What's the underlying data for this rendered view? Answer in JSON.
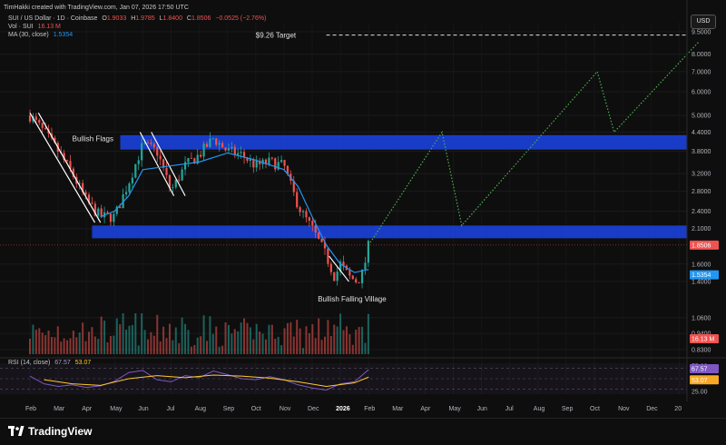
{
  "header": {
    "created_by": "TimHakki created with TradingView.com, Jan 07, 2026 17:50 UTC"
  },
  "legend": {
    "symbol": "SUI / US Dollar · 1D · Coinbase",
    "ohlc": {
      "O": "1.9033",
      "H": "1.9785",
      "L": "1.8400",
      "C": "1.8506",
      "change": "−0.0525 (−2.76%)"
    },
    "vol_label": "Vol · SUI",
    "vol_value": "16.13 M",
    "ma_label": "MA (30, close)",
    "ma_value": "1.5354",
    "rsi_label": "RSI (14, close)",
    "rsi_value": "67.57",
    "rsi_ma_value": "53.07"
  },
  "currency": "USD",
  "brand": "TradingView",
  "colors": {
    "up": "#26a69a",
    "down": "#ef5350",
    "zone": "#1a3fd1",
    "ma": "#2196f3",
    "projection": "#4caf50",
    "rsi": "#7e57c2",
    "rsi_ma": "#ffca28",
    "price_badge": "#ef5350",
    "ma_badge": "#2196f3"
  },
  "chart_data": {
    "type": "candlestick",
    "symbol": "SUI / US Dollar",
    "price_axis": {
      "scale": "log",
      "tick_labels": [
        "9.5000",
        "8.0000",
        "7.0000",
        "6.0000",
        "5.0000",
        "4.4000",
        "3.8000",
        "3.2000",
        "2.8000",
        "2.4000",
        "2.1000",
        "1.6000",
        "1.4000",
        "1.0600",
        "0.9400",
        "0.8300"
      ],
      "ticks": [
        9.5,
        8.0,
        7.0,
        6.0,
        5.0,
        4.4,
        3.8,
        3.2,
        2.8,
        2.4,
        2.1,
        1.6,
        1.4,
        1.06,
        0.94,
        0.83
      ],
      "last_price": "1.8506",
      "ma_price": "1.5354",
      "volume_badge": "16.13 M"
    },
    "time_axis": {
      "labels": [
        "Feb",
        "Mar",
        "Apr",
        "May",
        "Jun",
        "Jul",
        "Aug",
        "Sep",
        "Oct",
        "Nov",
        "Dec",
        "2026",
        "Feb",
        "Mar",
        "Apr",
        "May",
        "Jun",
        "Jul",
        "Aug",
        "Sep",
        "Oct",
        "Nov",
        "Dec",
        "20"
      ]
    },
    "zones": [
      {
        "from": 3.85,
        "to": 4.3
      },
      {
        "from": 1.95,
        "to": 2.15
      }
    ],
    "target": {
      "label": "$9.26 Target",
      "price": 9.26
    },
    "annotations": [
      {
        "text": "Bullish Flags",
        "month_index": 1.5,
        "price": 4.1
      },
      {
        "text": "Bullish Falling Village",
        "month_index": 10.2,
        "price": 1.2
      }
    ],
    "price_series": [
      {
        "month": 0,
        "price": 5.0
      },
      {
        "month": 0.5,
        "price": 4.4
      },
      {
        "month": 1,
        "price": 3.8
      },
      {
        "month": 1.5,
        "price": 3.2
      },
      {
        "month": 2,
        "price": 2.6
      },
      {
        "month": 2.5,
        "price": 2.3
      },
      {
        "month": 3,
        "price": 2.3
      },
      {
        "month": 3.5,
        "price": 3.0
      },
      {
        "month": 4,
        "price": 4.0
      },
      {
        "month": 4.5,
        "price": 3.8
      },
      {
        "month": 5,
        "price": 2.8
      },
      {
        "month": 5.5,
        "price": 3.4
      },
      {
        "month": 6,
        "price": 3.7
      },
      {
        "month": 6.5,
        "price": 4.2
      },
      {
        "month": 7,
        "price": 3.8
      },
      {
        "month": 7.5,
        "price": 3.7
      },
      {
        "month": 8,
        "price": 3.4
      },
      {
        "month": 8.5,
        "price": 3.5
      },
      {
        "month": 9,
        "price": 3.4
      },
      {
        "month": 9.3,
        "price": 2.8
      },
      {
        "month": 9.6,
        "price": 2.4
      },
      {
        "month": 10,
        "price": 2.1
      },
      {
        "month": 10.5,
        "price": 1.7
      },
      {
        "month": 10.8,
        "price": 1.45
      },
      {
        "month": 11,
        "price": 1.6
      },
      {
        "month": 11.3,
        "price": 1.45
      },
      {
        "month": 11.6,
        "price": 1.4
      },
      {
        "month": 11.8,
        "price": 1.5
      },
      {
        "month": 12,
        "price": 1.85
      }
    ],
    "ma_series": [
      {
        "month": 2.5,
        "price": 2.3
      },
      {
        "month": 3,
        "price": 2.4
      },
      {
        "month": 3.5,
        "price": 2.7
      },
      {
        "month": 4,
        "price": 3.3
      },
      {
        "month": 5,
        "price": 3.4
      },
      {
        "month": 6,
        "price": 3.5
      },
      {
        "month": 7,
        "price": 3.75
      },
      {
        "month": 8,
        "price": 3.55
      },
      {
        "month": 9,
        "price": 3.3
      },
      {
        "month": 9.5,
        "price": 2.9
      },
      {
        "month": 10,
        "price": 2.3
      },
      {
        "month": 10.5,
        "price": 1.85
      },
      {
        "month": 11,
        "price": 1.6
      },
      {
        "month": 11.5,
        "price": 1.5
      },
      {
        "month": 12,
        "price": 1.5354
      }
    ],
    "projection": [
      {
        "month": 12,
        "price": 1.85
      },
      {
        "month": 14.6,
        "price": 4.4
      },
      {
        "month": 15.3,
        "price": 2.15
      },
      {
        "month": 20.1,
        "price": 7.0
      },
      {
        "month": 20.7,
        "price": 4.4
      },
      {
        "month": 23.7,
        "price": 8.8
      }
    ],
    "flag_lines": [
      [
        {
          "month": 0,
          "price": 5.1
        },
        {
          "month": 2.3,
          "price": 2.2
        }
      ],
      [
        {
          "month": 0.3,
          "price": 5.1
        },
        {
          "month": 2.5,
          "price": 2.2
        }
      ],
      [
        {
          "month": 3.9,
          "price": 4.4
        },
        {
          "month": 5.1,
          "price": 2.7
        }
      ],
      [
        {
          "month": 4.3,
          "price": 4.4
        },
        {
          "month": 5.5,
          "price": 2.7
        }
      ],
      [
        {
          "month": 10.6,
          "price": 1.7
        },
        {
          "month": 11.3,
          "price": 1.4
        }
      ]
    ],
    "rsi": {
      "levels": [
        70,
        50,
        30
      ],
      "tick_labels": [
        "75.00",
        "50.00",
        "25.00"
      ],
      "ticks": [
        75,
        50,
        25
      ],
      "last": "67.57",
      "ma_last": "53.07",
      "series": [
        {
          "month": 0,
          "value": 55
        },
        {
          "month": 0.5,
          "value": 40
        },
        {
          "month": 1,
          "value": 35
        },
        {
          "month": 1.5,
          "value": 38
        },
        {
          "month": 2,
          "value": 33
        },
        {
          "month": 2.5,
          "value": 36
        },
        {
          "month": 3,
          "value": 45
        },
        {
          "month": 3.5,
          "value": 62
        },
        {
          "month": 4,
          "value": 66
        },
        {
          "month": 4.5,
          "value": 48
        },
        {
          "month": 5,
          "value": 44
        },
        {
          "month": 5.5,
          "value": 56
        },
        {
          "month": 6,
          "value": 52
        },
        {
          "month": 6.5,
          "value": 65
        },
        {
          "month": 7,
          "value": 58
        },
        {
          "month": 7.5,
          "value": 50
        },
        {
          "month": 8,
          "value": 48
        },
        {
          "month": 8.5,
          "value": 54
        },
        {
          "month": 9,
          "value": 48
        },
        {
          "month": 9.5,
          "value": 38
        },
        {
          "month": 10,
          "value": 32
        },
        {
          "month": 10.5,
          "value": 28
        },
        {
          "month": 11,
          "value": 40
        },
        {
          "month": 11.5,
          "value": 44
        },
        {
          "month": 12,
          "value": 67.57
        }
      ],
      "ma_series": [
        {
          "month": 0.5,
          "value": 48
        },
        {
          "month": 1.5,
          "value": 40
        },
        {
          "month": 2.5,
          "value": 37
        },
        {
          "month": 3.5,
          "value": 50
        },
        {
          "month": 4.5,
          "value": 56
        },
        {
          "month": 5.5,
          "value": 52
        },
        {
          "month": 6.5,
          "value": 57
        },
        {
          "month": 7.5,
          "value": 55
        },
        {
          "month": 8.5,
          "value": 51
        },
        {
          "month": 9.5,
          "value": 44
        },
        {
          "month": 10.5,
          "value": 35
        },
        {
          "month": 11.5,
          "value": 42
        },
        {
          "month": 12,
          "value": 53.07
        }
      ]
    }
  }
}
